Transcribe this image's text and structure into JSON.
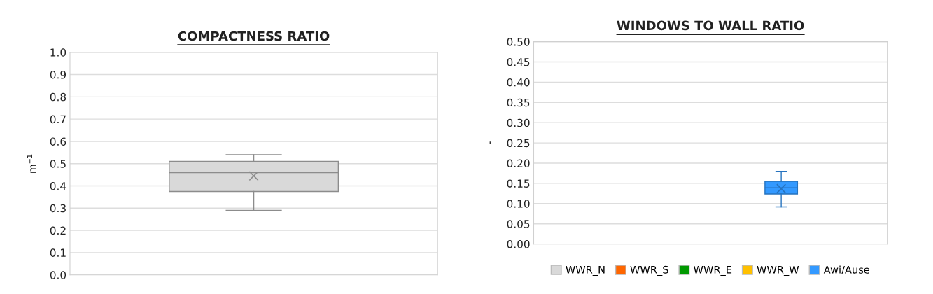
{
  "chart_data": [
    {
      "type": "box",
      "title": "COMPACTNESS RATIO",
      "ylabel": "m$^{−1}$",
      "categories": [
        null
      ],
      "ylim": [
        0,
        1
      ],
      "yticks": [
        {
          "value": 0,
          "label": "0.0"
        },
        0.1,
        0.2,
        0.3,
        0.4,
        0.5,
        0.6,
        0.7,
        0.8,
        0.9,
        {
          "value": 1,
          "label": "1.0"
        }
      ],
      "grid": "y",
      "legend": false,
      "series": [
        {
          "color": "#d9d9d9",
          "boxes": [
            {
              "low": 0.29,
              "q1": 0.375,
              "median": 0.46,
              "q3": 0.51,
              "high": 0.54,
              "mean": 0.445
            }
          ]
        }
      ]
    },
    {
      "type": "box",
      "title": "WINDOWS TO WALL RATIO",
      "ylabel": "-",
      "categories": [
        null
      ],
      "ylim": [
        0,
        0.5
      ],
      "yticks": [
        {
          "value": 0,
          "label": "0.00"
        },
        0.05,
        {
          "value": 0.1,
          "label": "0.10"
        },
        0.15,
        {
          "value": 0.2,
          "label": "0.20"
        },
        0.25,
        {
          "value": 0.3,
          "label": "0.30"
        },
        0.35,
        {
          "value": 0.4,
          "label": "0.40"
        },
        0.45,
        {
          "value": 0.5,
          "label": "0.50"
        }
      ],
      "grid": "y",
      "legend": "bottom",
      "series": [
        {
          "name": "WWR_N",
          "color": "#d9d9d9",
          "boxes": [
            null
          ]
        },
        {
          "name": "WWR_S",
          "color": "#ff6600",
          "boxes": [
            null
          ]
        },
        {
          "name": "WWR_E",
          "color": "#009900",
          "boxes": [
            null
          ]
        },
        {
          "name": "WWR_W",
          "color": "#ffc000",
          "boxes": [
            null
          ]
        },
        {
          "name": "Awi/Ause",
          "color": "#3399ff",
          "boxes": [
            {
              "low": 0.092,
              "q1": 0.124,
              "median": 0.139,
              "q3": 0.155,
              "high": 0.18,
              "mean": 0.137
            }
          ]
        }
      ]
    }
  ]
}
